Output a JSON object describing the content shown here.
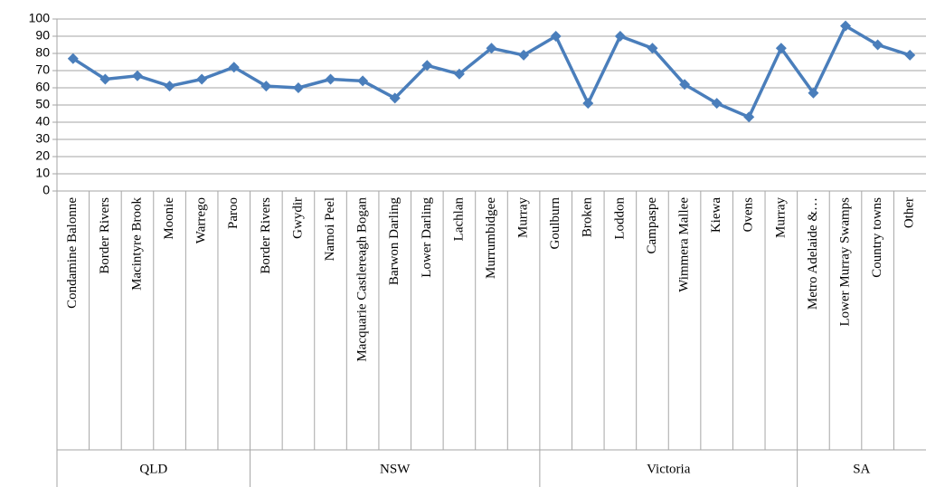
{
  "chart_data": {
    "type": "line",
    "groups": [
      {
        "label": "QLD",
        "categories": [
          "Condamine Balonne",
          "Border Rivers",
          "Macintyre Brook",
          "Moonie",
          "Warrego",
          "Paroo"
        ]
      },
      {
        "label": "NSW",
        "categories": [
          "Border Rivers",
          "Gwydir",
          "Namoi Peel",
          "Macquarie Castlereagh Bogan",
          "Barwon Darling",
          "Lower Darling",
          "Lachlan",
          "Murrumbidgee",
          "Murray"
        ]
      },
      {
        "label": "Victoria",
        "categories": [
          "Goulburn",
          "Broken",
          "Loddon",
          "Campaspe",
          "Wimmera Mallee",
          "Kiewa",
          "Ovens",
          "Murray"
        ]
      },
      {
        "label": "SA",
        "categories": [
          "Metro Adelaide &…",
          "Lower Murray Swamps",
          "Country towns",
          "Other"
        ]
      }
    ],
    "series": [
      {
        "color": "#4a7ebb",
        "values": [
          77,
          65,
          67,
          61,
          65,
          72,
          61,
          60,
          65,
          64,
          54,
          73,
          68,
          83,
          79,
          90,
          51,
          90,
          83,
          62,
          51,
          43,
          83,
          57,
          96,
          85,
          79
        ]
      }
    ],
    "ylim": [
      0,
      100
    ],
    "yticks": [
      0,
      10,
      20,
      30,
      40,
      50,
      60,
      70,
      80,
      90,
      100
    ],
    "grid": true
  }
}
